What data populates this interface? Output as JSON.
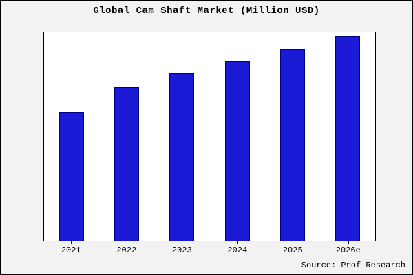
{
  "chart_data": {
    "type": "bar",
    "title": "Global Cam Shaft Market (Million USD)",
    "categories": [
      "2021",
      "2022",
      "2023",
      "2024",
      "2025",
      "2026e"
    ],
    "values": [
      63,
      75,
      82,
      88,
      94,
      100
    ],
    "ylim": [
      0,
      102
    ],
    "grid": false,
    "legend": "none",
    "xlabel": "",
    "ylabel": "",
    "bar_color": "#1b1bd7",
    "bar_edge_color": "#000080",
    "source": "Source: Prof Research"
  }
}
